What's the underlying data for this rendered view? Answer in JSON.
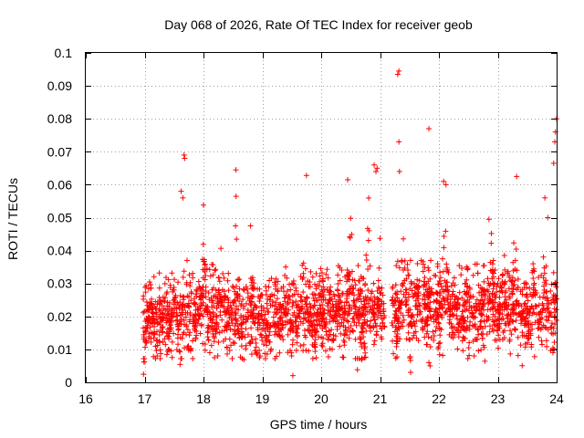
{
  "chart_data": {
    "type": "scatter",
    "title": "Day 068 of 2026, Rate Of TEC Index for receiver geob",
    "xlabel": "GPS time / hours",
    "ylabel": "ROTI / TECUs",
    "xlim": [
      16,
      24
    ],
    "ylim": [
      0,
      0.1
    ],
    "x_ticks": [
      "16",
      "17",
      "18",
      "19",
      "20",
      "21",
      "22",
      "23",
      "24"
    ],
    "y_ticks": [
      "0",
      "0.01",
      "0.02",
      "0.03",
      "0.04",
      "0.05",
      "0.06",
      "0.07",
      "0.08",
      "0.09",
      "0.1"
    ],
    "grid": true,
    "marker": "+",
    "color": "#ff0000",
    "series": [
      {
        "name": "ROTI",
        "x_start": 16.97,
        "x_end": 24.0,
        "baseline": [
          [
            17.0,
            0.019
          ],
          [
            17.5,
            0.02
          ],
          [
            18.0,
            0.022
          ],
          [
            18.5,
            0.021
          ],
          [
            19.0,
            0.019
          ],
          [
            19.5,
            0.021
          ],
          [
            20.0,
            0.02
          ],
          [
            20.5,
            0.022
          ],
          [
            21.0,
            0.021
          ],
          [
            21.5,
            0.024
          ],
          [
            22.0,
            0.023
          ],
          [
            22.5,
            0.021
          ],
          [
            23.0,
            0.023
          ],
          [
            23.5,
            0.021
          ],
          [
            24.0,
            0.022
          ]
        ],
        "typical_min": 0.008,
        "typical_max": 0.035,
        "bursts": [
          [
            17.1,
            0.03
          ],
          [
            17.5,
            0.035
          ],
          [
            18.0,
            0.045
          ],
          [
            18.3,
            0.052
          ],
          [
            18.55,
            0.062
          ],
          [
            18.8,
            0.047
          ],
          [
            19.4,
            0.04
          ],
          [
            19.7,
            0.05
          ],
          [
            20.0,
            0.042
          ],
          [
            20.3,
            0.04
          ],
          [
            20.5,
            0.055
          ],
          [
            20.8,
            0.06
          ],
          [
            21.0,
            0.045
          ],
          [
            21.4,
            0.05
          ],
          [
            21.7,
            0.057
          ],
          [
            22.1,
            0.058
          ],
          [
            22.5,
            0.04
          ],
          [
            22.9,
            0.049
          ],
          [
            23.1,
            0.045
          ],
          [
            23.3,
            0.06
          ],
          [
            23.6,
            0.04
          ],
          [
            23.8,
            0.05
          ]
        ],
        "notable_points": [
          [
            17.67,
            0.069
          ],
          [
            17.68,
            0.068
          ],
          [
            17.62,
            0.058
          ],
          [
            17.65,
            0.056
          ],
          [
            18.0,
            0.0538
          ],
          [
            18.55,
            0.0645
          ],
          [
            19.75,
            0.0628
          ],
          [
            20.45,
            0.0615
          ],
          [
            20.9,
            0.066
          ],
          [
            20.95,
            0.065
          ],
          [
            20.93,
            0.064
          ],
          [
            21.32,
            0.0945
          ],
          [
            21.3,
            0.0935
          ],
          [
            21.32,
            0.073
          ],
          [
            21.33,
            0.064
          ],
          [
            21.83,
            0.077
          ],
          [
            22.08,
            0.061
          ],
          [
            22.12,
            0.06
          ],
          [
            23.32,
            0.0625
          ],
          [
            23.8,
            0.056
          ],
          [
            23.85,
            0.05
          ],
          [
            24.0,
            0.08
          ],
          [
            23.98,
            0.076
          ],
          [
            23.97,
            0.073
          ],
          [
            23.95,
            0.0665
          ],
          [
            21.83,
            0.006
          ],
          [
            21.85,
            0.005
          ],
          [
            22.85,
            0.0495
          ],
          [
            18.8,
            0.0475
          ]
        ]
      }
    ]
  }
}
